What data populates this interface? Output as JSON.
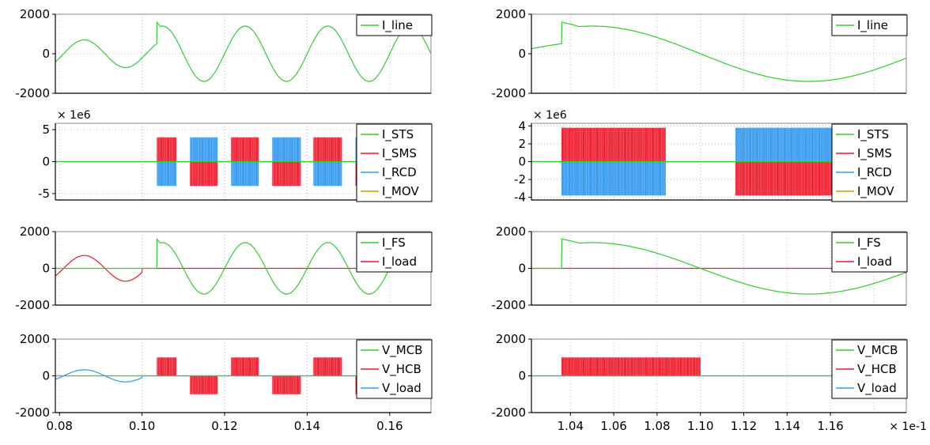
{
  "colors": {
    "green": "#33cc33",
    "red": "#ee1c2e",
    "blue": "#3399ee",
    "gold": "#c8a000",
    "grid": "#b8b8b8",
    "axis": "#000000"
  },
  "chart_data": [
    {
      "type": "line",
      "column": "left",
      "xlim": [
        0.079,
        0.17
      ],
      "ylim": [
        -2000,
        2000
      ],
      "yticks": [
        "2000",
        "0",
        "-2000"
      ],
      "xticks": [],
      "multiplier": "",
      "legend": "top-right",
      "series": [
        {
          "name": "I_line",
          "color": "green",
          "kind": "line_full"
        }
      ]
    },
    {
      "type": "line",
      "column": "left",
      "xlim": [
        0.079,
        0.17
      ],
      "ylim": [
        -6,
        6
      ],
      "yticks": [
        "5",
        "0",
        "-5"
      ],
      "xticks": [],
      "multiplier": "× 1e6",
      "legend": "top-right",
      "series": [
        {
          "name": "I_STS",
          "color": "green",
          "kind": "zero"
        },
        {
          "name": "I_SMS",
          "color": "red",
          "kind": "switch_a"
        },
        {
          "name": "I_RCD",
          "color": "blue",
          "kind": "switch_b"
        },
        {
          "name": "I_MOV",
          "color": "gold",
          "kind": "zero"
        }
      ]
    },
    {
      "type": "line",
      "column": "left",
      "xlim": [
        0.079,
        0.17
      ],
      "ylim": [
        -2000,
        2000
      ],
      "yticks": [
        "2000",
        "0",
        "-2000"
      ],
      "xticks": [],
      "multiplier": "",
      "legend": "top-right",
      "series": [
        {
          "name": "I_FS",
          "color": "green",
          "kind": "line_after"
        },
        {
          "name": "I_load",
          "color": "red",
          "kind": "load_before"
        }
      ]
    },
    {
      "type": "line",
      "column": "left",
      "xlim": [
        0.079,
        0.17
      ],
      "ylim": [
        -2000,
        2000
      ],
      "yticks": [
        "2000",
        "0",
        "-2000"
      ],
      "xticks": [
        "0.08",
        "0.10",
        "0.12",
        "0.14",
        "0.16"
      ],
      "multiplier": "",
      "legend": "top-right",
      "series": [
        {
          "name": "V_MCB",
          "color": "green",
          "kind": "zero"
        },
        {
          "name": "V_HCB",
          "color": "red",
          "kind": "vhcb"
        },
        {
          "name": "V_load",
          "color": "blue",
          "kind": "vload_before"
        }
      ]
    },
    {
      "type": "line",
      "column": "right",
      "xlim": [
        0.1022,
        0.1195
      ],
      "ylim": [
        -2000,
        2000
      ],
      "yticks": [
        "2000",
        "0",
        "-2000"
      ],
      "xticks": [],
      "multiplier": "",
      "legend": "top-right",
      "series": [
        {
          "name": "I_line",
          "color": "green",
          "kind": "line_full"
        }
      ]
    },
    {
      "type": "line",
      "column": "right",
      "xlim": [
        0.1022,
        0.1195
      ],
      "ylim": [
        -4.3,
        4.3
      ],
      "yticks": [
        "4",
        "2",
        "0",
        "-2",
        "-4"
      ],
      "xticks": [],
      "multiplier": "× 1e6",
      "legend": "top-right",
      "series": [
        {
          "name": "I_STS",
          "color": "green",
          "kind": "zero"
        },
        {
          "name": "I_SMS",
          "color": "red",
          "kind": "switch_a"
        },
        {
          "name": "I_RCD",
          "color": "blue",
          "kind": "switch_b"
        },
        {
          "name": "I_MOV",
          "color": "gold",
          "kind": "zero"
        }
      ]
    },
    {
      "type": "line",
      "column": "right",
      "xlim": [
        0.1022,
        0.1195
      ],
      "ylim": [
        -2000,
        2000
      ],
      "yticks": [
        "2000",
        "0",
        "-2000"
      ],
      "xticks": [],
      "multiplier": "",
      "legend": "top-right",
      "series": [
        {
          "name": "I_FS",
          "color": "green",
          "kind": "line_after"
        },
        {
          "name": "I_load",
          "color": "red",
          "kind": "load_before"
        }
      ]
    },
    {
      "type": "line",
      "column": "right",
      "xlim": [
        0.1022,
        0.1195
      ],
      "ylim": [
        -2000,
        2000
      ],
      "yticks": [
        "2000",
        "0",
        "-2000"
      ],
      "xticks": [
        "1.04",
        "1.06",
        "1.08",
        "1.10",
        "1.12",
        "1.14",
        "1.16"
      ],
      "multiplier": "× 1e-1",
      "legend": "top-right",
      "series": [
        {
          "name": "V_MCB",
          "color": "green",
          "kind": "zero"
        },
        {
          "name": "V_HCB",
          "color": "red",
          "kind": "vhcb"
        },
        {
          "name": "V_load",
          "color": "blue",
          "kind": "vload_before"
        }
      ]
    }
  ]
}
